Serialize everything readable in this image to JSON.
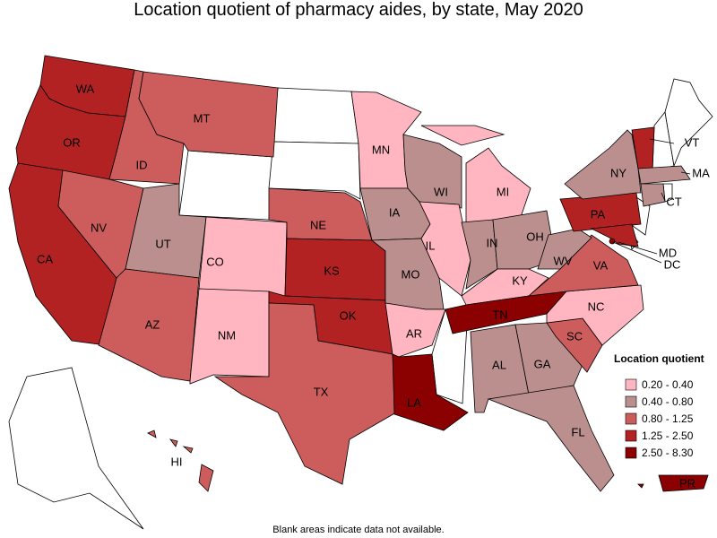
{
  "map": {
    "title": "Location quotient of pharmacy aides, by state, May 2020",
    "footnote": "Blank areas indicate data not available.",
    "legend": {
      "title": "Location quotient",
      "items": [
        {
          "label": "0.20 - 0.40",
          "color": "#ffb6c1"
        },
        {
          "label": "0.40 - 0.80",
          "color": "#bc8f8f"
        },
        {
          "label": "0.80 - 1.25",
          "color": "#cd5c5c"
        },
        {
          "label": "1.25 - 2.50",
          "color": "#b22222"
        },
        {
          "label": "2.50 - 8.30",
          "color": "#8b0000"
        }
      ]
    },
    "states": [
      {
        "label": "WA",
        "color": "#b22222"
      },
      {
        "label": "OR",
        "color": "#b22222"
      },
      {
        "label": "CA",
        "color": "#b22222"
      },
      {
        "label": "NV",
        "color": "#cd5c5c"
      },
      {
        "label": "ID",
        "color": "#cd5c5c"
      },
      {
        "label": "MT",
        "color": "#cd5c5c"
      },
      {
        "label": "UT",
        "color": "#bc8f8f"
      },
      {
        "label": "AZ",
        "color": "#cd5c5c"
      },
      {
        "label": "CO",
        "color": "#ffb6c1"
      },
      {
        "label": "NM",
        "color": "#ffb6c1"
      },
      {
        "label": "NE",
        "color": "#cd5c5c"
      },
      {
        "label": "KS",
        "color": "#b22222"
      },
      {
        "label": "OK",
        "color": "#b22222"
      },
      {
        "label": "TX",
        "color": "#cd5c5c"
      },
      {
        "label": "MN",
        "color": "#ffb6c1"
      },
      {
        "label": "IA",
        "color": "#bc8f8f"
      },
      {
        "label": "MO",
        "color": "#bc8f8f"
      },
      {
        "label": "AR",
        "color": "#ffb6c1"
      },
      {
        "label": "LA",
        "color": "#8b0000"
      },
      {
        "label": "WI",
        "color": "#bc8f8f"
      },
      {
        "label": "IL",
        "color": "#ffb6c1"
      },
      {
        "label": "MI",
        "color": "#ffb6c1"
      },
      {
        "label": "IN",
        "color": "#bc8f8f"
      },
      {
        "label": "OH",
        "color": "#bc8f8f"
      },
      {
        "label": "KY",
        "color": "#ffb6c1"
      },
      {
        "label": "TN",
        "color": "#8b0000"
      },
      {
        "label": "AL",
        "color": "#bc8f8f"
      },
      {
        "label": "GA",
        "color": "#bc8f8f"
      },
      {
        "label": "FL",
        "color": "#bc8f8f"
      },
      {
        "label": "SC",
        "color": "#cd5c5c"
      },
      {
        "label": "NC",
        "color": "#ffb6c1"
      },
      {
        "label": "VA",
        "color": "#cd5c5c"
      },
      {
        "label": "WV",
        "color": "#bc8f8f"
      },
      {
        "label": "PA",
        "color": "#b22222"
      },
      {
        "label": "NY",
        "color": "#bc8f8f"
      },
      {
        "label": "VT",
        "color": "#b22222"
      },
      {
        "label": "MA",
        "color": "#bc8f8f"
      },
      {
        "label": "CT",
        "color": "#bc8f8f"
      },
      {
        "label": "MD",
        "color": "#b22222"
      },
      {
        "label": "DC",
        "color": "#8b0000"
      },
      {
        "label": "HI",
        "color": "#cd5c5c"
      },
      {
        "label": "PR",
        "color": "#8b0000"
      }
    ]
  }
}
